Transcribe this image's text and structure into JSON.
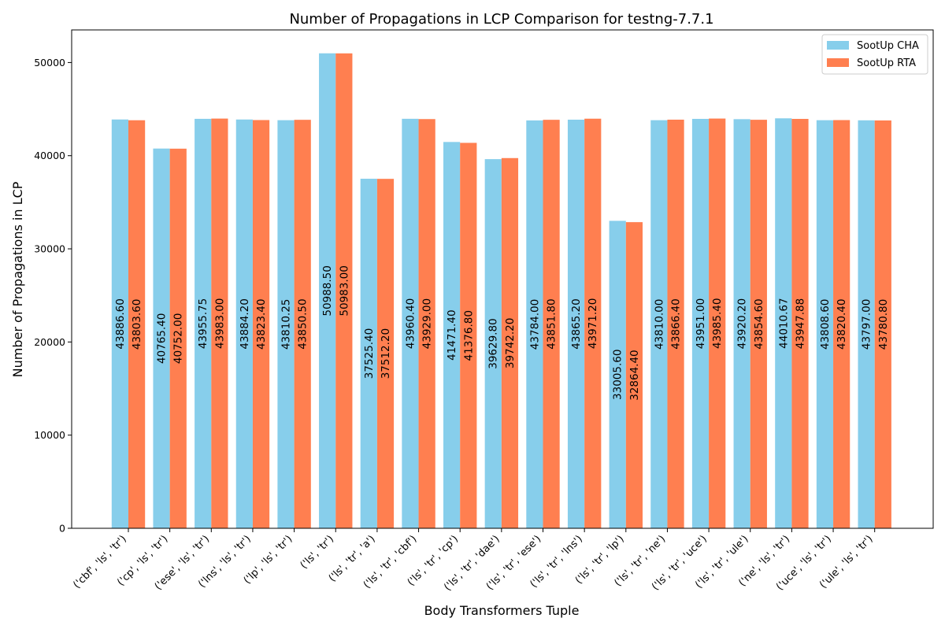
{
  "chart_data": {
    "type": "bar",
    "title": "Number of Propagations in LCP Comparison for testng-7.7.1",
    "xlabel": "Body Transformers Tuple",
    "ylabel": "Number of Propagations in LCP",
    "ylim": [
      0,
      53500
    ],
    "yticks": [
      0,
      10000,
      20000,
      30000,
      40000,
      50000
    ],
    "ytick_labels": [
      "0",
      "10000",
      "20000",
      "30000",
      "40000",
      "50000"
    ],
    "legend_position": "top-right",
    "grid": false,
    "categories": [
      "('cbf', 'ls', 'tr')",
      "('cp', 'ls', 'tr')",
      "('ese', 'ls', 'tr')",
      "('lns', 'ls', 'tr')",
      "('lp', 'ls', 'tr')",
      "('ls', 'tr')",
      "('ls', 'tr', 'a')",
      "('ls', 'tr', 'cbf')",
      "('ls', 'tr', 'cp')",
      "('ls', 'tr', 'dae')",
      "('ls', 'tr', 'ese')",
      "('ls', 'tr', 'lns')",
      "('ls', 'tr', 'lp')",
      "('ls', 'tr', 'ne')",
      "('ls', 'tr', 'uce')",
      "('ls', 'tr', 'ule')",
      "('ne', 'ls', 'tr')",
      "('uce', 'ls', 'tr')",
      "('ule', 'ls', 'tr')"
    ],
    "series": [
      {
        "name": "SootUp CHA",
        "color": "#87ceeb",
        "values": [
          43886.6,
          40765.4,
          43955.75,
          43884.2,
          43810.25,
          50988.5,
          37525.4,
          43960.4,
          41471.4,
          39629.8,
          43784.0,
          43865.2,
          33005.6,
          43810.0,
          43951.0,
          43920.2,
          44010.67,
          43808.6,
          43797.0
        ],
        "labels": [
          "43886.60",
          "40765.40",
          "43955.75",
          "43884.20",
          "43810.25",
          "50988.50",
          "37525.40",
          "43960.40",
          "41471.40",
          "39629.80",
          "43784.00",
          "43865.20",
          "33005.60",
          "43810.00",
          "43951.00",
          "43920.20",
          "44010.67",
          "43808.60",
          "43797.00"
        ]
      },
      {
        "name": "SootUp RTA",
        "color": "#ff7f50",
        "values": [
          43803.6,
          40752.0,
          43983.0,
          43823.4,
          43850.5,
          50983.0,
          37512.2,
          43929.0,
          41376.8,
          39742.2,
          43851.8,
          43971.2,
          32864.4,
          43866.4,
          43985.4,
          43854.6,
          43947.88,
          43820.4,
          43780.8
        ],
        "labels": [
          "43803.60",
          "40752.00",
          "43983.00",
          "43823.40",
          "43850.50",
          "50983.00",
          "37512.20",
          "43929.00",
          "41376.80",
          "39742.20",
          "43851.80",
          "43971.20",
          "32864.40",
          "43866.40",
          "43985.40",
          "43854.60",
          "43947.88",
          "43820.40",
          "43780.80"
        ]
      }
    ]
  }
}
